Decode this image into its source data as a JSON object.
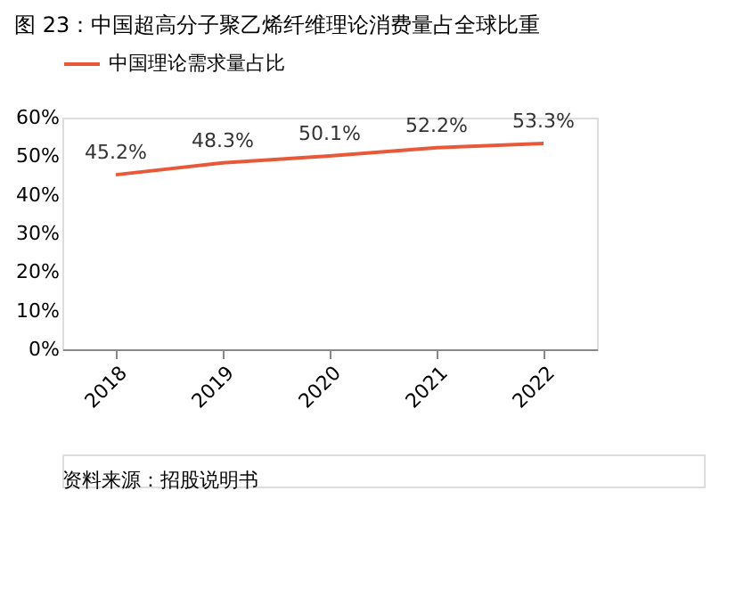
{
  "chart_data": {
    "type": "line",
    "title": "图 23：中国超高分子聚乙烯纤维理论消费量占全球比重",
    "categories": [
      "2018",
      "2019",
      "2020",
      "2021",
      "2022"
    ],
    "series": [
      {
        "name": "中国理论需求量占比",
        "color": "#e8593a",
        "values": [
          45.2,
          48.3,
          50.1,
          52.2,
          53.3
        ],
        "value_labels": [
          "45.2%",
          "48.3%",
          "50.1%",
          "52.2%",
          "53.3%"
        ]
      }
    ],
    "ylim": [
      0,
      60
    ],
    "yticks": [
      {
        "value": 0,
        "label": "0%"
      },
      {
        "value": 10,
        "label": "10%"
      },
      {
        "value": 20,
        "label": "20%"
      },
      {
        "value": 30,
        "label": "30%"
      },
      {
        "value": 40,
        "label": "40%"
      },
      {
        "value": 50,
        "label": "50%"
      },
      {
        "value": 60,
        "label": "60%"
      }
    ],
    "grid": false,
    "legend": "top",
    "marker": "none",
    "annotations": [
      "资料来源：招股说明书"
    ]
  }
}
